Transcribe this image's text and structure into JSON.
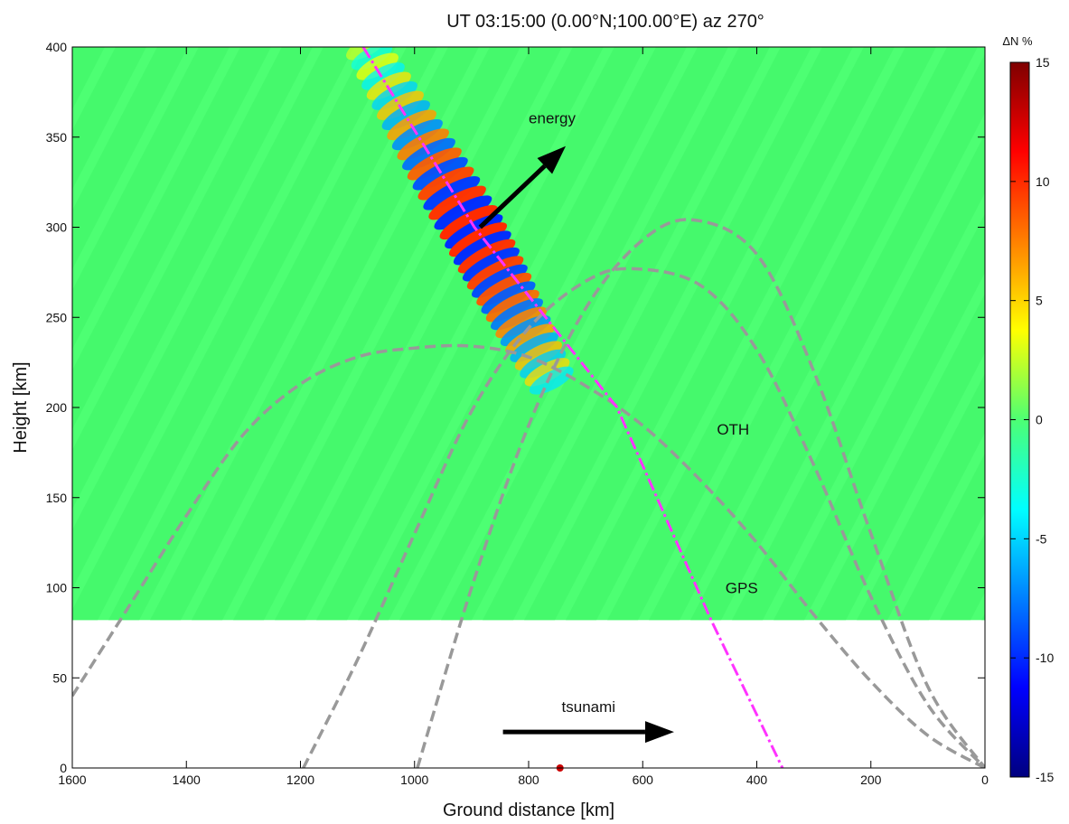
{
  "chart_data": {
    "type": "heatmap",
    "title": "UT 03:15:00  (0.00°N;100.00°E)   az 270°",
    "xlabel": "Ground distance [km]",
    "ylabel": "Height [km]",
    "xlim": [
      1600,
      0
    ],
    "ylim": [
      0,
      400
    ],
    "x_ticks": [
      1600,
      1400,
      1200,
      1000,
      800,
      600,
      400,
      200,
      0
    ],
    "y_ticks": [
      0,
      50,
      100,
      150,
      200,
      250,
      300,
      350,
      400
    ],
    "field_bottom_km": 82,
    "colorbar": {
      "label": "ΔN %",
      "range": [
        -15,
        15
      ],
      "ticks": [
        15,
        10,
        5,
        0,
        -5,
        -10,
        -15
      ]
    },
    "wave_packet": {
      "center_path": [
        [
          1085,
          400
        ],
        [
          900,
          300
        ],
        [
          760,
          215
        ]
      ],
      "peak_center": [
        900,
        298
      ],
      "max_amplitude_percent": 10
    },
    "series": [
      {
        "name": "GPS",
        "style": "dash-dot",
        "color": "#ff33ff",
        "points": [
          [
            1090,
            400
          ],
          [
            895,
            300
          ],
          [
            645,
            200
          ],
          [
            480,
            82
          ],
          [
            355,
            0
          ]
        ]
      },
      {
        "name": "OTH",
        "style": "dashed",
        "color": "#999999",
        "rays": [
          [
            [
              1600,
              40
            ],
            [
              1500,
              90
            ],
            [
              1400,
              140
            ],
            [
              1300,
              185
            ],
            [
              1200,
              213
            ],
            [
              1100,
              228
            ],
            [
              1000,
              233
            ],
            [
              900,
              234
            ],
            [
              800,
              228
            ],
            [
              700,
              212
            ],
            [
              600,
              190
            ],
            [
              500,
              160
            ],
            [
              400,
              125
            ],
            [
              300,
              85
            ],
            [
              200,
              48
            ],
            [
              100,
              18
            ],
            [
              0,
              0
            ]
          ],
          [
            [
              1195,
              0
            ],
            [
              1100,
              60
            ],
            [
              1000,
              130
            ],
            [
              900,
              198
            ],
            [
              800,
              244
            ],
            [
              700,
              270
            ],
            [
              620,
              277
            ],
            [
              500,
              268
            ],
            [
              400,
              232
            ],
            [
              300,
              168
            ],
            [
              200,
              95
            ],
            [
              100,
              35
            ],
            [
              0,
              0
            ]
          ],
          [
            [
              995,
              0
            ],
            [
              900,
              100
            ],
            [
              800,
              190
            ],
            [
              700,
              255
            ],
            [
              600,
              293
            ],
            [
              510,
              304
            ],
            [
              400,
              285
            ],
            [
              300,
              220
            ],
            [
              200,
              130
            ],
            [
              100,
              45
            ],
            [
              0,
              0
            ]
          ]
        ]
      }
    ],
    "annotations": {
      "energy_label": "energy",
      "tsunami_label": "tsunami",
      "oth_label": "OTH",
      "gps_label": "GPS",
      "energy_arrow": [
        [
          885,
          300
        ],
        [
          735,
          345
        ]
      ],
      "tsunami_arrow": [
        [
          845,
          20
        ],
        [
          545,
          20
        ]
      ],
      "ground_marker": [
        745,
        0
      ],
      "ground_marker_color": "#cc0000"
    },
    "colors": {
      "background_field": "#4dff73",
      "arrow": "#000000"
    }
  }
}
